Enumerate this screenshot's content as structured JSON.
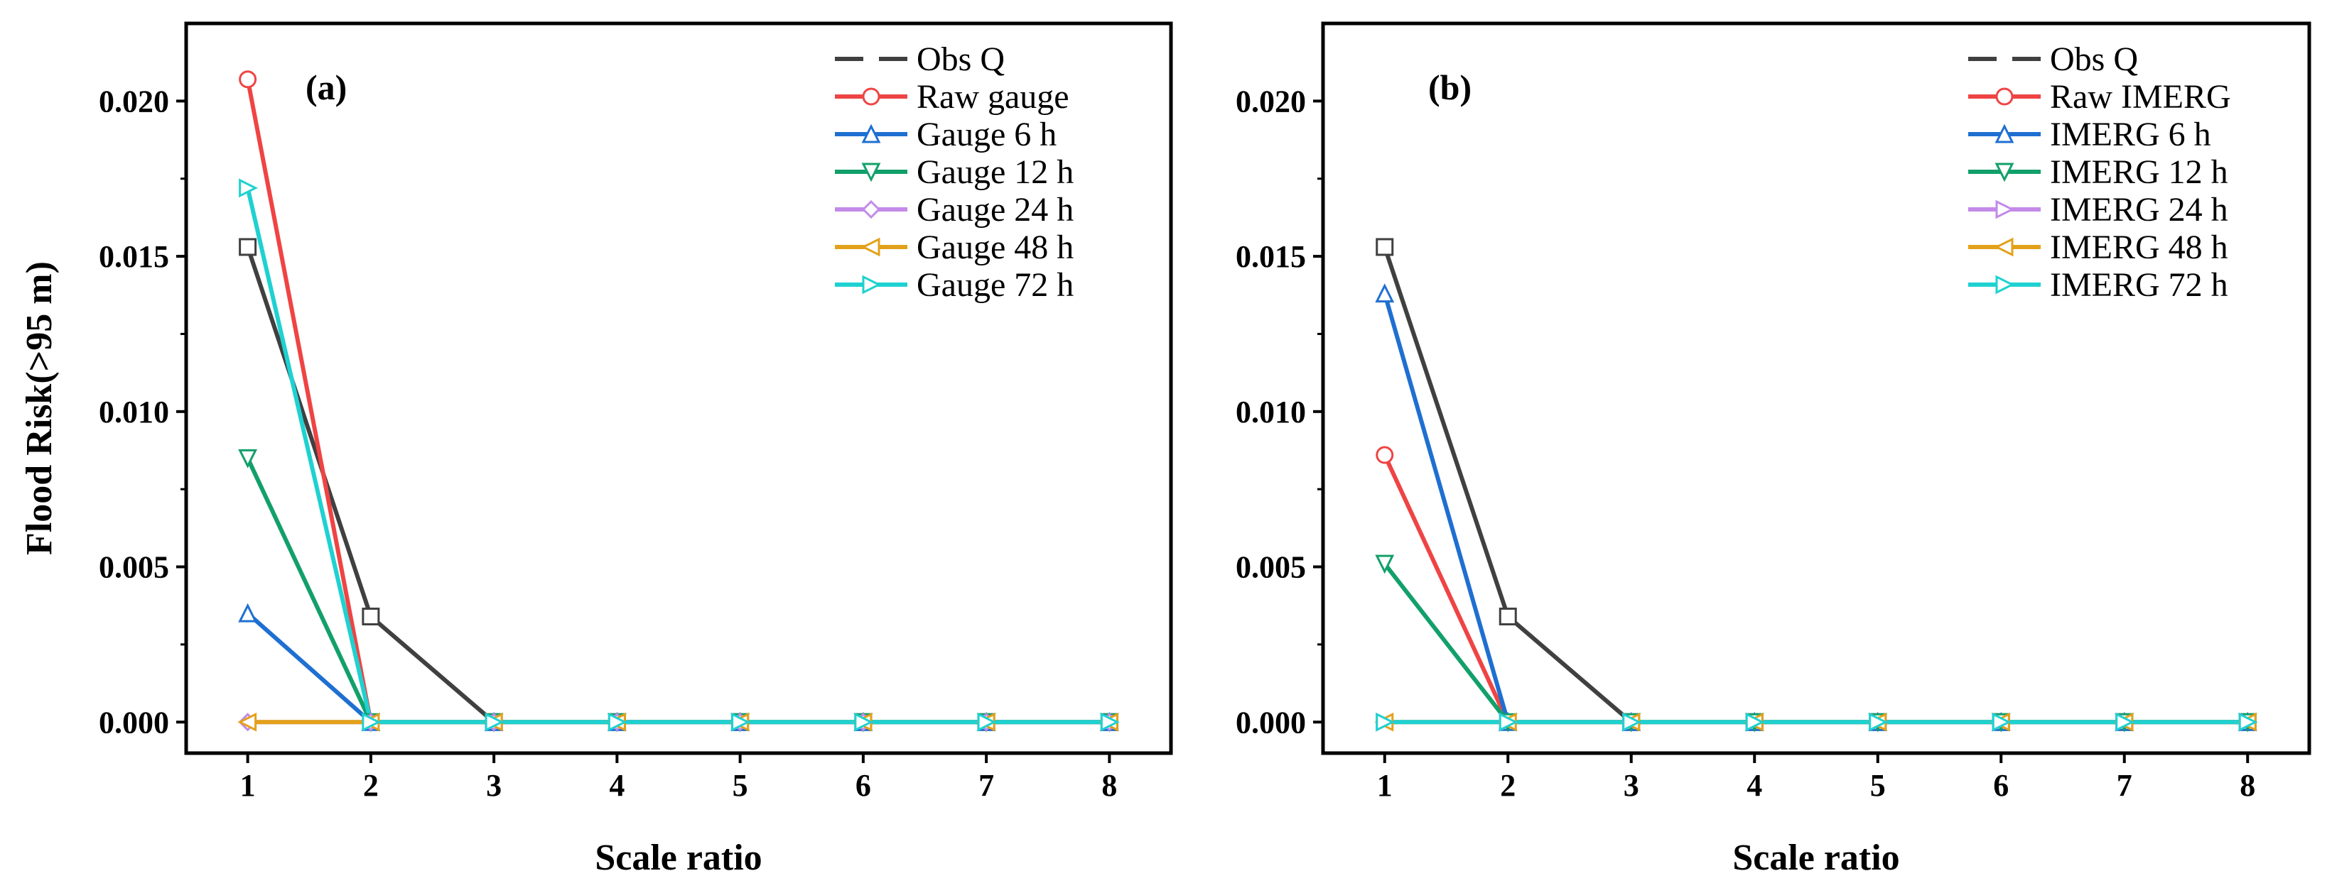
{
  "figure": {
    "ylabel": "Flood Risk(>95 m)",
    "xlabel": "Scale ratio"
  },
  "chart_data": [
    {
      "type": "line",
      "panel": "(a)",
      "xlabel": "Scale ratio",
      "ylabel": "Flood Risk(>95 m)",
      "xlim": [
        0.5,
        8.5
      ],
      "ylim": [
        -0.001,
        0.0225
      ],
      "xticks": [
        1,
        2,
        3,
        4,
        5,
        6,
        7,
        8
      ],
      "yticks": [
        "0.000",
        "0.005",
        "0.010",
        "0.015",
        "0.020"
      ],
      "legend_position": "top-right",
      "series": [
        {
          "name": "Obs Q",
          "color": "#404040",
          "marker": "square",
          "x": [
            1,
            2,
            3,
            4,
            5,
            6,
            7,
            8
          ],
          "values": [
            0.0153,
            0.0034,
            0.0,
            0.0,
            0.0,
            0.0,
            0.0,
            0.0
          ]
        },
        {
          "name": "Raw gauge",
          "color": "#ef4444",
          "marker": "circle",
          "x": [
            1,
            2,
            3,
            4,
            5,
            6,
            7,
            8
          ],
          "values": [
            0.0207,
            0.0,
            0.0,
            0.0,
            0.0,
            0.0,
            0.0,
            0.0
          ]
        },
        {
          "name": "Gauge 6 h",
          "color": "#1f6fd1",
          "marker": "triangle-up",
          "x": [
            1,
            2,
            3,
            4,
            5,
            6,
            7,
            8
          ],
          "values": [
            0.0035,
            0.0,
            0.0,
            0.0,
            0.0,
            0.0,
            0.0,
            0.0
          ]
        },
        {
          "name": "Gauge 12 h",
          "color": "#12a06a",
          "marker": "triangle-down",
          "x": [
            1,
            2,
            3,
            4,
            5,
            6,
            7,
            8
          ],
          "values": [
            0.0085,
            0.0,
            0.0,
            0.0,
            0.0,
            0.0,
            0.0,
            0.0
          ]
        },
        {
          "name": "Gauge 24 h",
          "color": "#c38ae8",
          "marker": "diamond",
          "x": [
            1,
            2,
            3,
            4,
            5,
            6,
            7,
            8
          ],
          "values": [
            0.0,
            0.0,
            0.0,
            0.0,
            0.0,
            0.0,
            0.0,
            0.0
          ]
        },
        {
          "name": "Gauge 48 h",
          "color": "#e3a11b",
          "marker": "triangle-left",
          "x": [
            1,
            2,
            3,
            4,
            5,
            6,
            7,
            8
          ],
          "values": [
            0.0,
            0.0,
            0.0,
            0.0,
            0.0,
            0.0,
            0.0,
            0.0
          ]
        },
        {
          "name": "Gauge 72 h",
          "color": "#1fd1d1",
          "marker": "triangle-right",
          "x": [
            1,
            2,
            3,
            4,
            5,
            6,
            7,
            8
          ],
          "values": [
            0.0172,
            0.0,
            0.0,
            0.0,
            0.0,
            0.0,
            0.0,
            0.0
          ]
        }
      ]
    },
    {
      "type": "line",
      "panel": "(b)",
      "xlabel": "Scale ratio",
      "ylabel": "",
      "xlim": [
        0.5,
        8.5
      ],
      "ylim": [
        -0.001,
        0.0225
      ],
      "xticks": [
        1,
        2,
        3,
        4,
        5,
        6,
        7,
        8
      ],
      "yticks": [
        "0.000",
        "0.005",
        "0.010",
        "0.015",
        "0.020"
      ],
      "legend_position": "top-right",
      "series": [
        {
          "name": "Obs Q",
          "color": "#404040",
          "marker": "square",
          "x": [
            1,
            2,
            3,
            4,
            5,
            6,
            7,
            8
          ],
          "values": [
            0.0153,
            0.0034,
            0.0,
            0.0,
            0.0,
            0.0,
            0.0,
            0.0
          ]
        },
        {
          "name": "Raw IMERG",
          "color": "#ef4444",
          "marker": "circle",
          "x": [
            1,
            2,
            3,
            4,
            5,
            6,
            7,
            8
          ],
          "values": [
            0.0086,
            0.0,
            0.0,
            0.0,
            0.0,
            0.0,
            0.0,
            0.0
          ]
        },
        {
          "name": "IMERG 6 h",
          "color": "#1f6fd1",
          "marker": "triangle-up",
          "x": [
            1,
            2,
            3,
            4,
            5,
            6,
            7,
            8
          ],
          "values": [
            0.0138,
            0.0,
            0.0,
            0.0,
            0.0,
            0.0,
            0.0,
            0.0
          ]
        },
        {
          "name": "IMERG 12 h",
          "color": "#12a06a",
          "marker": "triangle-down",
          "x": [
            1,
            2,
            3,
            4,
            5,
            6,
            7,
            8
          ],
          "values": [
            0.0051,
            0.0,
            0.0,
            0.0,
            0.0,
            0.0,
            0.0,
            0.0
          ]
        },
        {
          "name": "IMERG 24 h",
          "color": "#c38ae8",
          "marker": "triangle-right",
          "x": [
            1,
            2,
            3,
            4,
            5,
            6,
            7,
            8
          ],
          "values": [
            0.0,
            0.0,
            0.0,
            0.0,
            0.0,
            0.0,
            0.0,
            0.0
          ]
        },
        {
          "name": "IMERG 48 h",
          "color": "#e3a11b",
          "marker": "triangle-left",
          "x": [
            1,
            2,
            3,
            4,
            5,
            6,
            7,
            8
          ],
          "values": [
            0.0,
            0.0,
            0.0,
            0.0,
            0.0,
            0.0,
            0.0,
            0.0
          ]
        },
        {
          "name": "IMERG 72 h",
          "color": "#1fd1d1",
          "marker": "triangle-right",
          "x": [
            1,
            2,
            3,
            4,
            5,
            6,
            7,
            8
          ],
          "values": [
            0.0,
            0.0,
            0.0,
            0.0,
            0.0,
            0.0,
            0.0,
            0.0
          ]
        }
      ]
    }
  ]
}
